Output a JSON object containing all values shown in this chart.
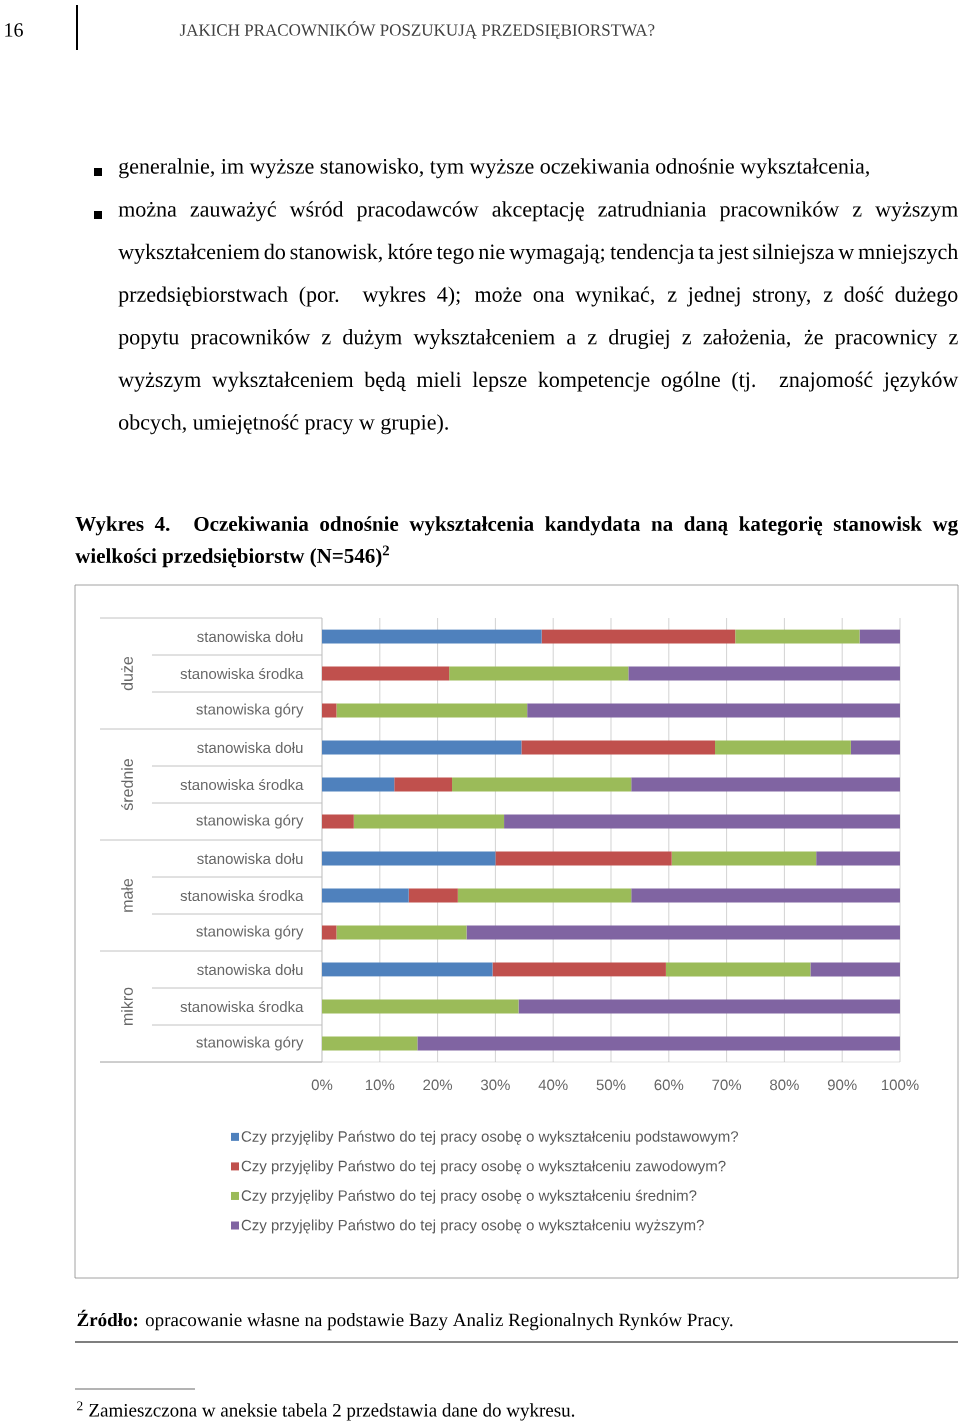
{
  "chart_data": {
    "type": "bar",
    "orientation": "horizontal",
    "stacked": true,
    "title": "Wykres 4. Oczekiwania odnośnie wykształcenia kandydata na daną kategorię stanowisk wg wielkości przedsiębiorstw (N=546)$^{2}$",
    "categories": [
      "stanowiska dołu",
      "stanowiska środka",
      "stanowiska góry",
      "stanowiska dołu",
      "stanowiska środka",
      "stanowiska góry",
      "stanowiska dołu",
      "stanowiska środka",
      "stanowiska góry",
      "stanowiska dołu",
      "stanowiska środka",
      "stanowiska góry"
    ],
    "series": [
      {
        "name": "Czy przyjęliby Państwo do tej pracy osobę o wykształceniu podstawowym?",
        "color": "#4f81bd",
        "values": [
          38,
          0,
          0,
          34.5,
          12.5,
          0,
          30,
          15,
          0,
          29.5,
          0,
          0
        ]
      },
      {
        "name": "Czy przyjęliby Państwo do tej pracy osobę o wykształceniu zawodowym?",
        "color": "#c0504d",
        "values": [
          33.5,
          22,
          2.5,
          33.5,
          10,
          5.5,
          30.5,
          8.5,
          2.5,
          30,
          0,
          0
        ]
      },
      {
        "name": "Czy przyjęliby Państwo do tej pracy osobę o wykształceniu średnim?",
        "color": "#9bbb59",
        "values": [
          21.5,
          31,
          33,
          23.5,
          31,
          26,
          25,
          30,
          22.5,
          25,
          34,
          16.5
        ]
      },
      {
        "name": "Czy przyjęliby Państwo do tej pracy osobę o wykształceniu wyższym?",
        "color": "#8064a2",
        "values": [
          7,
          47,
          64.5,
          8.5,
          46.5,
          68.5,
          14.5,
          46.5,
          75,
          15.5,
          66,
          83.5
        ]
      }
    ],
    "xlim": [
      0,
      100
    ],
    "xticks": [
      {
        "value": 0,
        "label": "0%"
      },
      {
        "value": 10,
        "label": "10%"
      },
      {
        "value": 20,
        "label": "20%"
      },
      {
        "value": 30,
        "label": "30%"
      },
      {
        "value": 40,
        "label": "40%"
      },
      {
        "value": 50,
        "label": "50%"
      },
      {
        "value": 60,
        "label": "60%"
      },
      {
        "value": 70,
        "label": "70%"
      },
      {
        "value": 80,
        "label": "80%"
      },
      {
        "value": 90,
        "label": "90%"
      },
      {
        "value": 100,
        "label": "100%"
      }
    ],
    "grid": "x",
    "legend": "bottom",
    "annotations": [
      "16",
      "JAKICH PRACOWNIKÓW POSZUKUJĄ PRZEDSIĘBIORSTWA?",
      "generalnie, im wyższe stanowisko, tym wyższe oczekiwania odnośnie wykształcenia,",
      "można zauważyć wśród pracodawców akceptację zatrudniania pracowników z wyższym wykształceniem do stanowisk, które tego nie wymagają; tendencja ta jest silniejsza w mniejszych przedsiębiorstwach (por. wykres 4); może ona wynikać, z jednej strony, z dość dużego popytu pracowników z dużym wykształceniem a z drugiej z założenia, że pracownicy z wyższym wykształceniem będą mieli lepsze kompetencje ogólne (tj. znajomość języków obcych, umiejętność pracy w grupie).",
      "duże",
      "średnie",
      "małe",
      "mikro",
      "**Źródło:** opracowanie własne na podstawie Bazy Analiz Regionalnych Rynków Pracy.",
      "$^{2}$ Zamieszczona w aneksie tabela 2 przedstawia dane do wykresu."
    ]
  }
}
